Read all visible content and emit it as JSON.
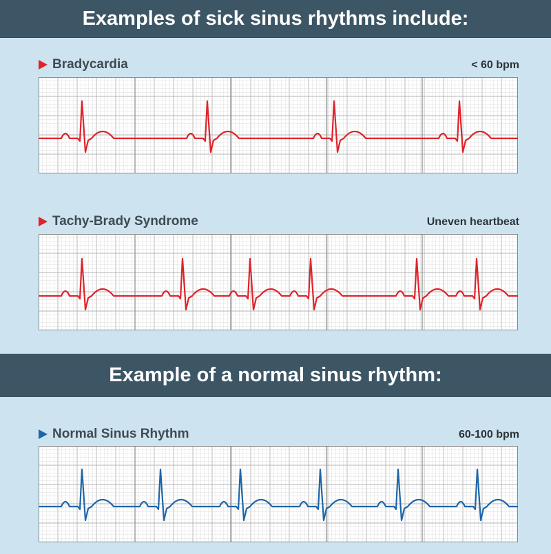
{
  "banners": {
    "sick": "Examples of sick sinus rhythms include:",
    "normal": "Example of a normal sinus rhythm:"
  },
  "rhythms": [
    {
      "title": "Bradycardia",
      "note": "< 60 bpm",
      "color": "#e02229",
      "beats": [
        0.0905,
        0.3519,
        0.6164,
        0.8779
      ]
    },
    {
      "title": "Tachy-Brady Syndrome",
      "note": "Uneven heartbeat",
      "color": "#e02229",
      "beats": [
        0.0905,
        0.3003,
        0.4411,
        0.5675,
        0.7888,
        0.9138
      ]
    },
    {
      "title": "Normal Sinus Rhythm",
      "note": "60-100 bpm",
      "color": "#1f66a8",
      "beats": [
        0.0905,
        0.2543,
        0.421,
        0.5876,
        0.75,
        0.9152
      ]
    }
  ],
  "colors": {
    "banner": "#3d5665",
    "background": "#cde4f0",
    "grid_minor": "#dcdcdc",
    "grid_major": "#b4b4b4",
    "grid_section": "#8a8a8a"
  }
}
